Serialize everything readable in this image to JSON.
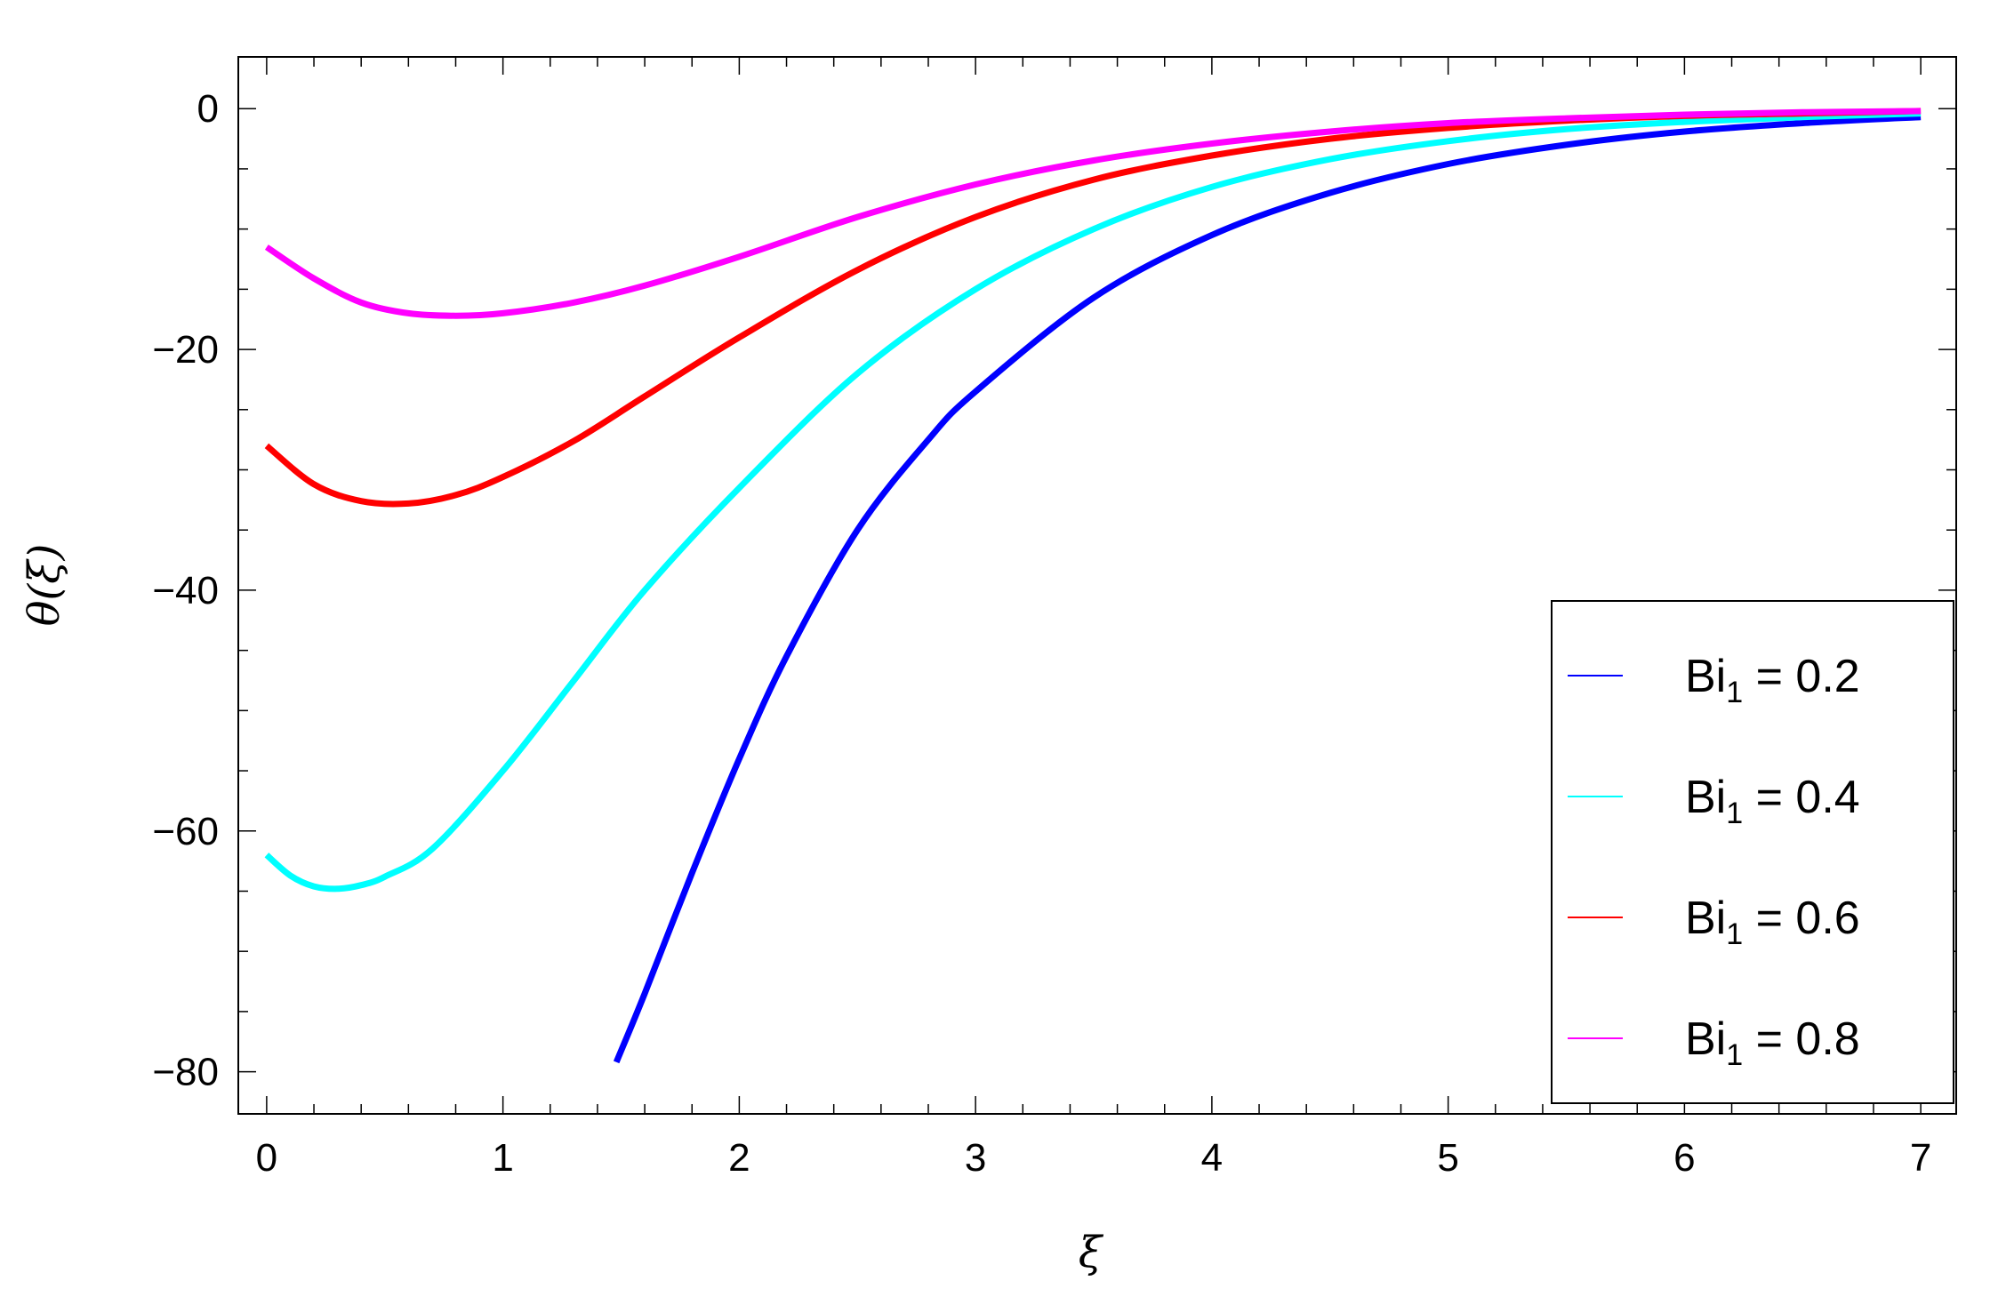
{
  "chart_data": {
    "type": "line",
    "title": "",
    "xlabel": "ξ",
    "ylabel": "θ(ξ)",
    "xlim": [
      -0.12,
      7.15
    ],
    "ylim": [
      -83.5,
      4.3
    ],
    "x_ticks": [
      0,
      1,
      2,
      3,
      4,
      5,
      6,
      7
    ],
    "x_tick_labels": [
      "0",
      "1",
      "2",
      "3",
      "4",
      "5",
      "6",
      "7"
    ],
    "y_ticks": [
      0,
      -20,
      -40,
      -60,
      -80
    ],
    "y_tick_labels": [
      "0",
      "−20",
      "−40",
      "−60",
      "−80"
    ],
    "grid": false,
    "legend_position": "bottom-right",
    "series": [
      {
        "name": "Bi₁ = 0.2",
        "label_base": "Bi",
        "label_sub": "1",
        "label_rest": " = 0.2",
        "color": "#0000ff",
        "x": [
          1.48,
          1.6,
          1.8,
          2.0,
          2.2,
          2.5,
          2.8,
          3.0,
          3.5,
          4.0,
          4.5,
          5.0,
          5.5,
          6.0,
          6.5,
          7.0
        ],
        "y": [
          -79.2,
          -73.5,
          -63.5,
          -54.0,
          -45.5,
          -35.0,
          -27.5,
          -23.5,
          -15.7,
          -10.5,
          -7.0,
          -4.6,
          -3.0,
          -1.9,
          -1.2,
          -0.7
        ]
      },
      {
        "name": "Bi₁ = 0.4",
        "label_base": "Bi",
        "label_sub": "1",
        "label_rest": " = 0.4",
        "color": "#00ffff",
        "x": [
          0,
          0.1,
          0.2,
          0.3,
          0.4,
          0.5,
          0.7,
          1.0,
          1.3,
          1.6,
          2.0,
          2.5,
          3.0,
          3.5,
          4.0,
          4.5,
          5.0,
          5.5,
          6.0,
          6.5,
          7.0
        ],
        "y": [
          -62.0,
          -63.7,
          -64.6,
          -64.8,
          -64.5,
          -63.8,
          -61.5,
          -55.0,
          -47.5,
          -40.0,
          -31.5,
          -22.0,
          -15.0,
          -10.0,
          -6.5,
          -4.2,
          -2.7,
          -1.7,
          -1.1,
          -0.7,
          -0.4
        ]
      },
      {
        "name": "Bi₁ = 0.6",
        "label_base": "Bi",
        "label_sub": "1",
        "label_rest": " = 0.6",
        "color": "#ff0000",
        "x": [
          0,
          0.2,
          0.4,
          0.6,
          0.8,
          1.0,
          1.3,
          1.6,
          2.0,
          2.5,
          3.0,
          3.5,
          4.0,
          4.5,
          5.0,
          5.5,
          6.0,
          6.5,
          7.0
        ],
        "y": [
          -28.0,
          -31.2,
          -32.6,
          -32.8,
          -32.1,
          -30.6,
          -27.6,
          -23.9,
          -19.0,
          -13.4,
          -9.0,
          -5.9,
          -3.9,
          -2.5,
          -1.6,
          -1.0,
          -0.6,
          -0.4,
          -0.2
        ]
      },
      {
        "name": "Bi₁ = 0.8",
        "label_base": "Bi",
        "label_sub": "1",
        "label_rest": " = 0.8",
        "color": "#ff00ff",
        "x": [
          0,
          0.2,
          0.4,
          0.6,
          0.8,
          1.0,
          1.3,
          1.6,
          2.0,
          2.5,
          3.0,
          3.5,
          4.0,
          4.5,
          5.0,
          5.5,
          6.0,
          6.5,
          7.0
        ],
        "y": [
          -11.5,
          -14.1,
          -16.1,
          -17.0,
          -17.2,
          -17.0,
          -16.1,
          -14.7,
          -12.3,
          -9.0,
          -6.3,
          -4.3,
          -2.9,
          -1.9,
          -1.2,
          -0.8,
          -0.5,
          -0.3,
          -0.2
        ]
      }
    ]
  }
}
